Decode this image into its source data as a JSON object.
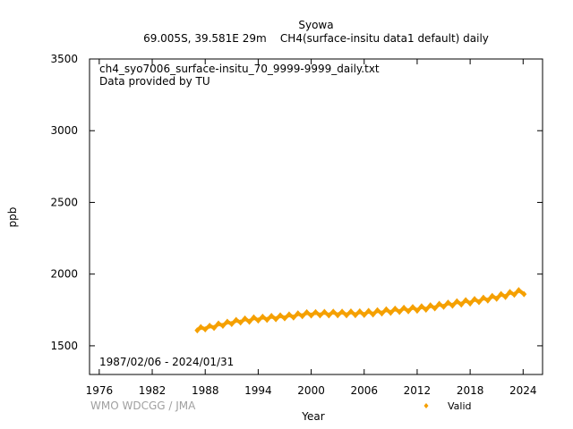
{
  "header": {
    "station": "Syowa",
    "subtitle": "69.005S, 39.581E 29m    CH4(surface-insitu data1 default) daily"
  },
  "plot": {
    "file_label": "ch4_syo7006_surface-insitu_70_9999-9999_daily.txt",
    "provider_label": "Data provided by TU",
    "date_range_label": "1987/02/06 - 2024/01/31",
    "credit": "WMO WDCGG / JMA"
  },
  "colors": {
    "series": "#f5a000",
    "axis": "#000000",
    "credit": "#a0a0a0"
  },
  "chart_data": {
    "type": "scatter",
    "title": "Syowa",
    "xlabel": "Year",
    "ylabel": "ppb",
    "xlim": [
      1974.9,
      2026.2
    ],
    "ylim": [
      1300,
      3500
    ],
    "x_ticks": [
      1976,
      1982,
      1988,
      1994,
      2000,
      2006,
      2012,
      2018,
      2024
    ],
    "y_ticks": [
      1500,
      2000,
      2500,
      3000,
      3500
    ],
    "grid": false,
    "legend": {
      "position": "bottom-right",
      "entries": [
        {
          "label": "Valid",
          "marker": "diamond"
        }
      ]
    },
    "series": [
      {
        "name": "Valid",
        "x": [
          1987.1,
          1987.5,
          1988.0,
          1988.5,
          1989.0,
          1989.5,
          1990.0,
          1990.5,
          1991.0,
          1991.5,
          1992.0,
          1992.5,
          1993.0,
          1993.5,
          1994.0,
          1994.5,
          1995.0,
          1995.5,
          1996.0,
          1996.5,
          1997.0,
          1997.5,
          1998.0,
          1998.5,
          1999.0,
          1999.5,
          2000.0,
          2000.5,
          2001.0,
          2001.5,
          2002.0,
          2002.5,
          2003.0,
          2003.5,
          2004.0,
          2004.5,
          2005.0,
          2005.5,
          2006.0,
          2006.5,
          2007.0,
          2007.5,
          2008.0,
          2008.5,
          2009.0,
          2009.5,
          2010.0,
          2010.5,
          2011.0,
          2011.5,
          2012.0,
          2012.5,
          2013.0,
          2013.5,
          2014.0,
          2014.5,
          2015.0,
          2015.5,
          2016.0,
          2016.5,
          2017.0,
          2017.5,
          2018.0,
          2018.5,
          2019.0,
          2019.5,
          2020.0,
          2020.5,
          2021.0,
          2021.5,
          2022.0,
          2022.5,
          2023.0,
          2023.5,
          2024.1
        ],
        "values": [
          1608,
          1630,
          1615,
          1640,
          1625,
          1655,
          1640,
          1668,
          1652,
          1680,
          1662,
          1690,
          1668,
          1698,
          1676,
          1703,
          1681,
          1708,
          1686,
          1712,
          1692,
          1718,
          1697,
          1726,
          1707,
          1734,
          1711,
          1735,
          1712,
          1736,
          1712,
          1738,
          1713,
          1738,
          1713,
          1739,
          1714,
          1740,
          1715,
          1743,
          1718,
          1748,
          1725,
          1754,
          1730,
          1759,
          1736,
          1765,
          1741,
          1770,
          1745,
          1775,
          1752,
          1782,
          1761,
          1792,
          1772,
          1801,
          1780,
          1810,
          1788,
          1818,
          1795,
          1826,
          1805,
          1835,
          1816,
          1848,
          1828,
          1861,
          1841,
          1875,
          1856,
          1888,
          1860
        ]
      }
    ]
  }
}
